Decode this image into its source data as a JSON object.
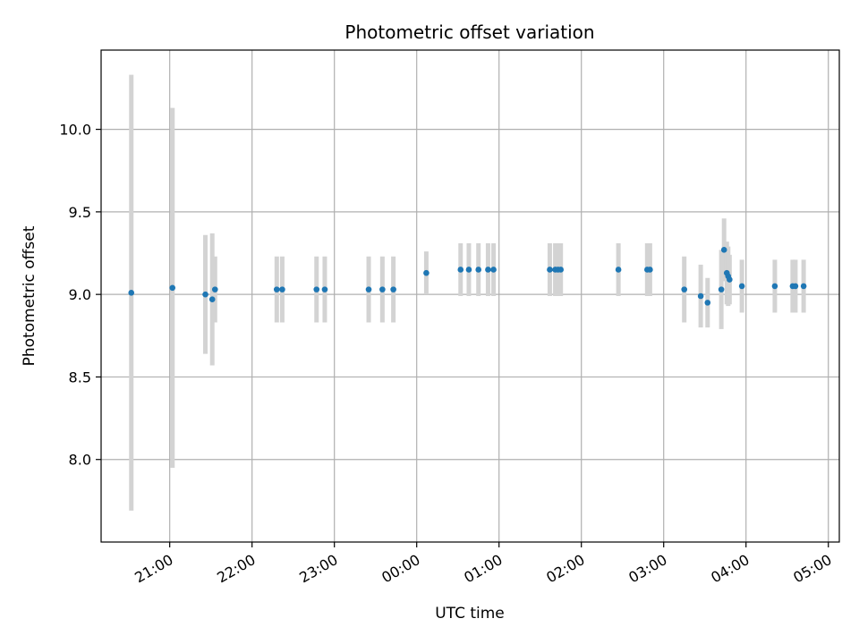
{
  "chart_data": {
    "type": "scatter",
    "title": "Photometric offset variation",
    "xlabel": "UTC time",
    "ylabel": "Photometric offset",
    "grid": true,
    "error_bars": true,
    "colors": {
      "point": "#1f77b4",
      "error": "#d3d3d3",
      "grid": "#b0b0b0",
      "axis": "#000000"
    },
    "xlim": [
      "20:10",
      "05:08"
    ],
    "ylim": [
      7.5,
      10.48
    ],
    "x_ticks": [
      "21:00",
      "22:00",
      "23:00",
      "00:00",
      "01:00",
      "02:00",
      "03:00",
      "04:00",
      "05:00"
    ],
    "y_ticks": [
      "8.0",
      "8.5",
      "9.0",
      "9.5",
      "10.0"
    ],
    "points": [
      {
        "x": "20:32",
        "y": 9.01,
        "err": 1.32
      },
      {
        "x": "21:02",
        "y": 9.04,
        "err": 1.09
      },
      {
        "x": "21:26",
        "y": 9.0,
        "err": 0.36
      },
      {
        "x": "21:31",
        "y": 8.97,
        "err": 0.4
      },
      {
        "x": "21:33",
        "y": 9.03,
        "err": 0.2
      },
      {
        "x": "22:18",
        "y": 9.03,
        "err": 0.2
      },
      {
        "x": "22:22",
        "y": 9.03,
        "err": 0.2
      },
      {
        "x": "22:47",
        "y": 9.03,
        "err": 0.2
      },
      {
        "x": "22:53",
        "y": 9.03,
        "err": 0.2
      },
      {
        "x": "23:25",
        "y": 9.03,
        "err": 0.2
      },
      {
        "x": "23:35",
        "y": 9.03,
        "err": 0.2
      },
      {
        "x": "23:43",
        "y": 9.03,
        "err": 0.2
      },
      {
        "x": "00:07",
        "y": 9.13,
        "err": 0.13
      },
      {
        "x": "00:32",
        "y": 9.15,
        "err": 0.16
      },
      {
        "x": "00:38",
        "y": 9.15,
        "err": 0.16
      },
      {
        "x": "00:45",
        "y": 9.15,
        "err": 0.16
      },
      {
        "x": "00:52",
        "y": 9.15,
        "err": 0.16
      },
      {
        "x": "00:56",
        "y": 9.15,
        "err": 0.16
      },
      {
        "x": "01:37",
        "y": 9.15,
        "err": 0.16
      },
      {
        "x": "01:41",
        "y": 9.15,
        "err": 0.16
      },
      {
        "x": "01:43",
        "y": 9.15,
        "err": 0.16
      },
      {
        "x": "01:45",
        "y": 9.15,
        "err": 0.16
      },
      {
        "x": "02:27",
        "y": 9.15,
        "err": 0.16
      },
      {
        "x": "02:48",
        "y": 9.15,
        "err": 0.16
      },
      {
        "x": "02:50",
        "y": 9.15,
        "err": 0.16
      },
      {
        "x": "03:15",
        "y": 9.03,
        "err": 0.2
      },
      {
        "x": "03:27",
        "y": 8.99,
        "err": 0.19
      },
      {
        "x": "03:32",
        "y": 8.95,
        "err": 0.15
      },
      {
        "x": "03:42",
        "y": 9.03,
        "err": 0.24
      },
      {
        "x": "03:44",
        "y": 9.27,
        "err": 0.19
      },
      {
        "x": "03:46",
        "y": 9.13,
        "err": 0.19
      },
      {
        "x": "03:47",
        "y": 9.11,
        "err": 0.18
      },
      {
        "x": "03:48",
        "y": 9.09,
        "err": 0.15
      },
      {
        "x": "03:57",
        "y": 9.05,
        "err": 0.16
      },
      {
        "x": "04:21",
        "y": 9.05,
        "err": 0.16
      },
      {
        "x": "04:34",
        "y": 9.05,
        "err": 0.16
      },
      {
        "x": "04:36",
        "y": 9.05,
        "err": 0.16
      },
      {
        "x": "04:42",
        "y": 9.05,
        "err": 0.16
      }
    ]
  }
}
